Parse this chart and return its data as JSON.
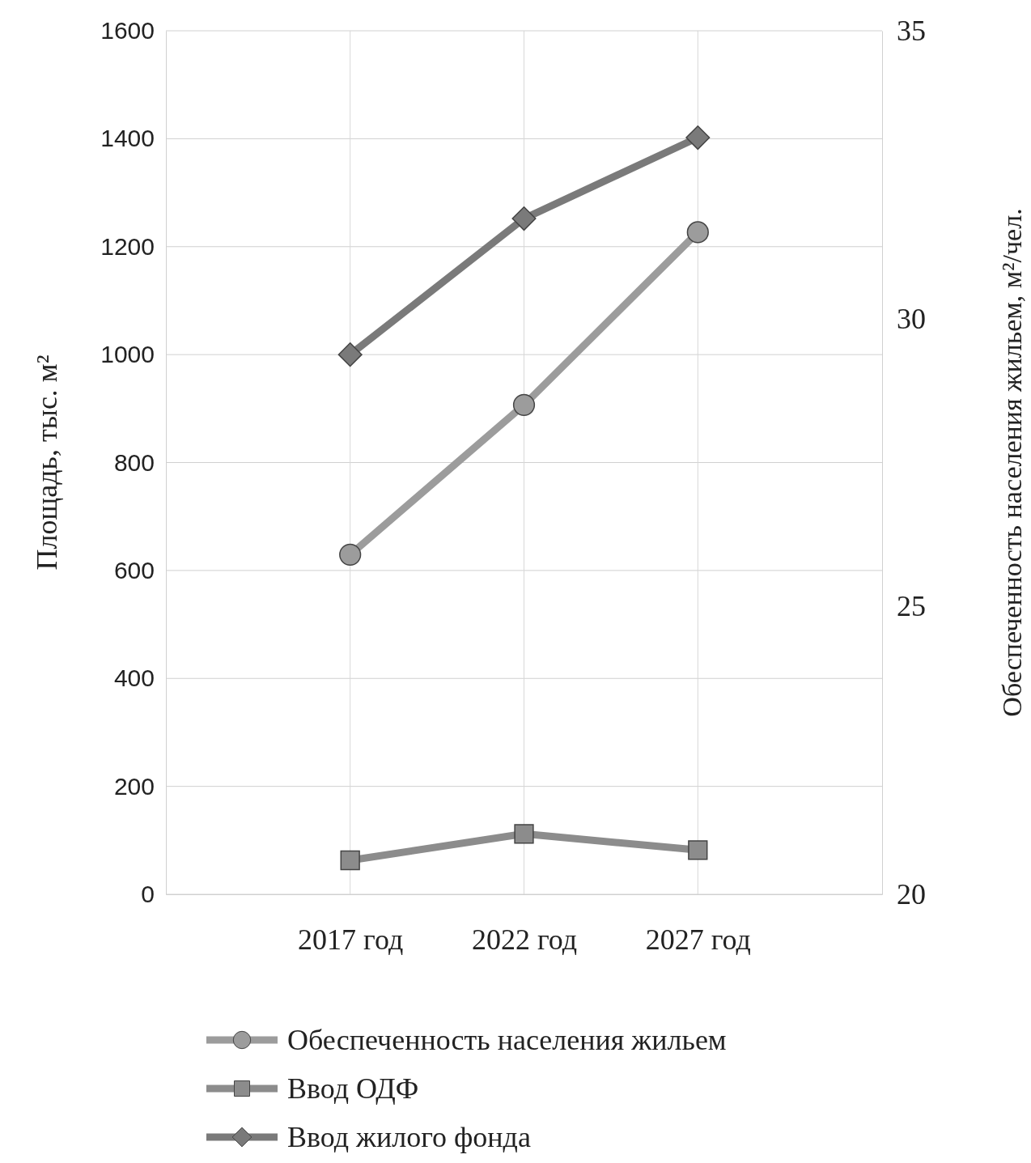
{
  "chart_data": {
    "type": "line",
    "ylabel": "Площадь, тыс. м²",
    "y2label": "Обеспеченность населения жильем, м²/чел.",
    "categories": [
      "2017 год",
      "2022 год",
      "2027 год"
    ],
    "series": [
      {
        "name": "Обеспеченность населения жильем",
        "color": "#9c9c9c",
        "values": [
          25.9,
          28.5,
          31.5
        ],
        "axis": "y2",
        "marker": "circle"
      },
      {
        "name": "Ввод ОДФ",
        "color": "#8c8c8c",
        "values": [
          63,
          112,
          82
        ],
        "marker": "square"
      },
      {
        "name": "Ввод жилого фонда",
        "color": "#7a7a7a",
        "values": [
          1000,
          1252,
          1402
        ],
        "marker": "diamond"
      }
    ],
    "ylim": [
      0,
      1600
    ],
    "yticks": [
      0,
      200,
      400,
      600,
      800,
      1000,
      1200,
      1400,
      1600
    ],
    "y2lim": [
      20,
      35
    ],
    "y2ticks": [
      20,
      25,
      30,
      35
    ],
    "grid": true,
    "legend": "bottom",
    "line_style": "solid"
  }
}
